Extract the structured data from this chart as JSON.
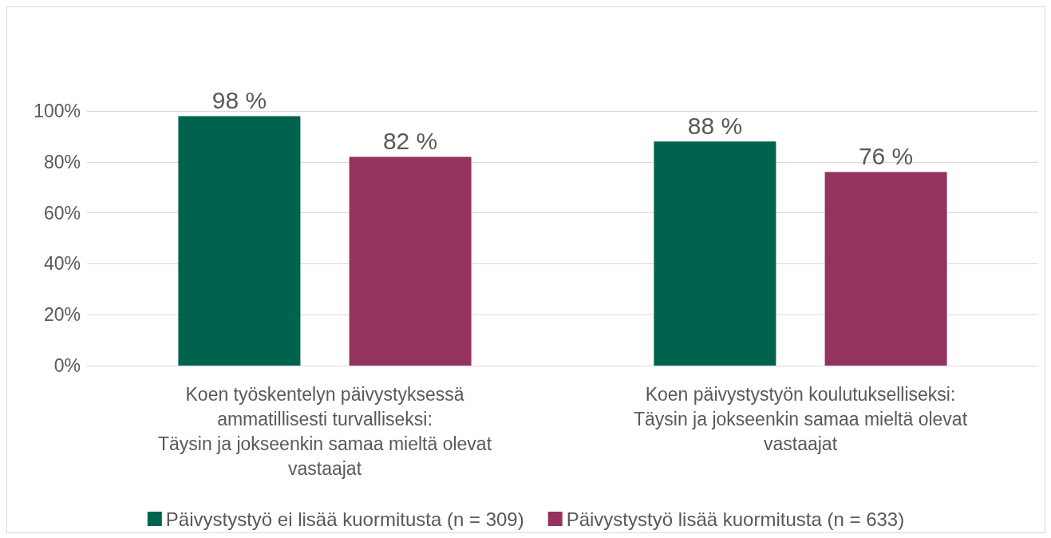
{
  "chart_data": {
    "type": "bar",
    "categories": [
      "Koen työskentelyn päivystyksessä\nammatillisesti turvalliseksi:\nTäysin ja jokseenkin samaa mieltä olevat\nvastaajat",
      "Koen päivystystyön koulutukselliseksi:\nTäysin ja jokseenkin samaa mieltä olevat\nvastaajat"
    ],
    "series": [
      {
        "name": "Päivystystyö ei lisää kuormitusta (n = 309)",
        "color": "#00634d",
        "values": [
          98,
          88
        ],
        "value_labels": [
          "98 %",
          "88 %"
        ]
      },
      {
        "name": "Päivystystyö lisää kuormitusta (n = 633)",
        "color": "#95325e",
        "values": [
          82,
          76
        ],
        "value_labels": [
          "82 %",
          "76 %"
        ]
      }
    ],
    "ylim": [
      0,
      100
    ],
    "yticks": [
      {
        "value": 0,
        "label": "0%"
      },
      {
        "value": 20,
        "label": "20%"
      },
      {
        "value": 40,
        "label": "40%"
      },
      {
        "value": 60,
        "label": "60%"
      },
      {
        "value": 80,
        "label": "80%"
      },
      {
        "value": 100,
        "label": "100%"
      }
    ],
    "grid": "y",
    "legend": "bottom"
  }
}
